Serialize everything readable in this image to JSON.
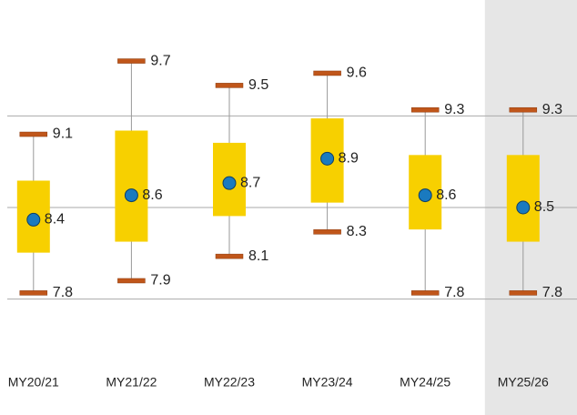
{
  "chart_data": {
    "type": "box",
    "categories": [
      "MY20/21",
      "MY21/22",
      "MY22/23",
      "MY23/24",
      "MY24/25",
      "MY25/26"
    ],
    "high": [
      9.1,
      9.7,
      9.5,
      9.6,
      9.3,
      9.3
    ],
    "low": [
      7.8,
      7.9,
      8.1,
      8.3,
      7.8,
      7.8
    ],
    "mean": [
      8.4,
      8.6,
      8.7,
      8.9,
      8.6,
      8.5
    ],
    "box_top": [
      8.72,
      9.13,
      9.03,
      9.23,
      8.93,
      8.93
    ],
    "box_bottom": [
      8.13,
      8.22,
      8.43,
      8.54,
      8.32,
      8.22
    ],
    "box_color": "#f7d000",
    "cap_color": "#c0561a",
    "mean_color": "#1a7abf",
    "whisker_color": "#999999",
    "highlight_index": 5,
    "highlight_color": "#e6e6e6",
    "ylim": [
      6.8,
      10.2
    ],
    "yticks": [
      7.75,
      8.5,
      9.25
    ],
    "grid": true
  }
}
